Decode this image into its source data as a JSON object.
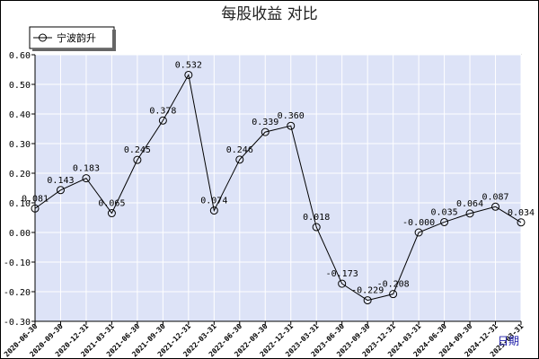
{
  "chart_data": {
    "type": "line",
    "title": "每股收益 对比",
    "xlabel": "日期",
    "ylabel": "",
    "ylim": [
      -0.3,
      0.6
    ],
    "yticks": [
      "0.60",
      "0.50",
      "0.40",
      "0.30",
      "0.20",
      "0.10",
      "0.00",
      "-0.10",
      "-0.20",
      "-0.30"
    ],
    "grid": true,
    "legend_position": "top-left",
    "colors": {
      "plot_bg": "#dde3f7",
      "grid": "#ffffff",
      "line": "#000000"
    },
    "categories": [
      "2020-06-30",
      "2020-09-30",
      "2020-12-31",
      "2021-03-31",
      "2021-06-30",
      "2021-09-30",
      "2021-12-31",
      "2022-03-31",
      "2022-06-30",
      "2022-09-30",
      "2022-12-31",
      "2023-03-31",
      "2023-06-30",
      "2023-09-30",
      "2023-12-31",
      "2024-03-31",
      "2024-06-30",
      "2024-09-30",
      "2024-12-31",
      "2025-03-31"
    ],
    "series": [
      {
        "name": "宁波韵升",
        "values": [
          0.081,
          0.143,
          0.183,
          0.065,
          0.245,
          0.378,
          0.532,
          0.074,
          0.246,
          0.339,
          0.36,
          0.018,
          -0.173,
          -0.229,
          -0.208,
          -0.0,
          0.035,
          0.064,
          0.087,
          0.034
        ],
        "labels": [
          "0.081",
          "0.143",
          "0.183",
          "0.065",
          "0.245",
          "0.378",
          "0.532",
          "0.074",
          "0.246",
          "0.339",
          "0.360",
          "0.018",
          "-0.173",
          "-0.229",
          "-0.208",
          "-0.000",
          "0.035",
          "0.064",
          "0.087",
          "0.034"
        ]
      }
    ]
  }
}
